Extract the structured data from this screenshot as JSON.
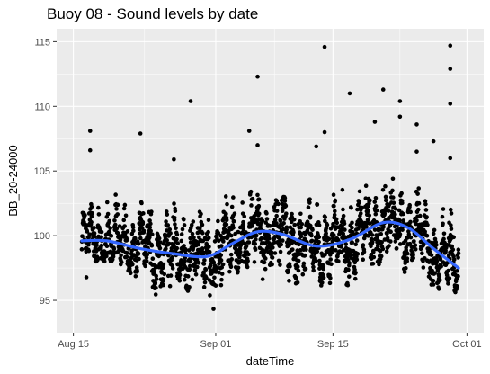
{
  "chart_data": {
    "type": "scatter",
    "title": "Buoy 08 - Sound levels by date",
    "xlabel": "dateTime",
    "ylabel": "BB_20-24000",
    "x_ticks": [
      "Aug 15",
      "Sep 01",
      "Sep 15",
      "Oct 01"
    ],
    "x_tick_values": [
      "2018-08-15",
      "2018-09-01",
      "2018-09-15",
      "2018-10-01"
    ],
    "y_ticks": [
      95,
      100,
      105,
      110,
      115
    ],
    "xlim": [
      "2018-08-13",
      "2018-10-03"
    ],
    "ylim": [
      92.5,
      116
    ],
    "grid": true,
    "background": "#ebebeb",
    "point_color": "#000000",
    "smooth_color": "#3366ff",
    "date_range": [
      "2018-08-16",
      "2018-09-30"
    ],
    "smooth": {
      "type": "loess",
      "x": [
        "2018-08-16",
        "2018-08-19",
        "2018-08-23",
        "2018-08-27",
        "2018-08-31",
        "2018-09-03",
        "2018-09-06",
        "2018-09-09",
        "2018-09-13",
        "2018-09-17",
        "2018-09-21",
        "2018-09-24",
        "2018-09-27",
        "2018-09-30"
      ],
      "y": [
        99.6,
        99.6,
        99.0,
        98.6,
        98.4,
        99.4,
        100.3,
        100.1,
        99.2,
        99.7,
        101.0,
        100.6,
        99.0,
        97.5
      ]
    },
    "point_envelope": {
      "x": [
        "2018-08-16",
        "2018-08-18",
        "2018-08-20",
        "2018-08-22",
        "2018-08-24",
        "2018-08-26",
        "2018-08-28",
        "2018-08-30",
        "2018-09-01",
        "2018-09-03",
        "2018-09-05",
        "2018-09-07",
        "2018-09-09",
        "2018-09-11",
        "2018-09-13",
        "2018-09-15",
        "2018-09-17",
        "2018-09-19",
        "2018-09-21",
        "2018-09-23",
        "2018-09-25",
        "2018-09-27",
        "2018-09-29",
        "2018-09-30"
      ],
      "low": [
        95.0,
        98.0,
        98.0,
        97.0,
        95.0,
        96.0,
        96.0,
        95.0,
        94.0,
        97.0,
        97.0,
        96.0,
        96.0,
        96.0,
        96.0,
        96.0,
        96.0,
        97.0,
        98.0,
        97.0,
        97.0,
        96.0,
        95.0,
        96.0
      ],
      "high": [
        102.0,
        103.0,
        104.0,
        103.0,
        103.0,
        103.0,
        102.0,
        103.0,
        103.0,
        104.0,
        106.0,
        103.0,
        103.0,
        103.0,
        103.0,
        104.0,
        104.0,
        104.0,
        105.0,
        104.0,
        104.0,
        103.0,
        102.0,
        103.0
      ]
    },
    "outliers": {
      "x": [
        "2018-08-17",
        "2018-08-17",
        "2018-08-23",
        "2018-08-27",
        "2018-08-29",
        "2018-09-05",
        "2018-09-06",
        "2018-09-06",
        "2018-09-14",
        "2018-09-14",
        "2018-09-13",
        "2018-09-17",
        "2018-09-20",
        "2018-09-21",
        "2018-09-23",
        "2018-09-23",
        "2018-09-25",
        "2018-09-25",
        "2018-09-29",
        "2018-09-29",
        "2018-09-29",
        "2018-09-29",
        "2018-09-27"
      ],
      "y": [
        108.1,
        106.6,
        107.9,
        105.9,
        110.4,
        108.1,
        112.3,
        107.0,
        108.0,
        114.6,
        106.9,
        111.0,
        108.8,
        111.3,
        110.4,
        109.2,
        106.5,
        108.6,
        114.7,
        112.9,
        110.2,
        106.0,
        107.3
      ]
    }
  }
}
